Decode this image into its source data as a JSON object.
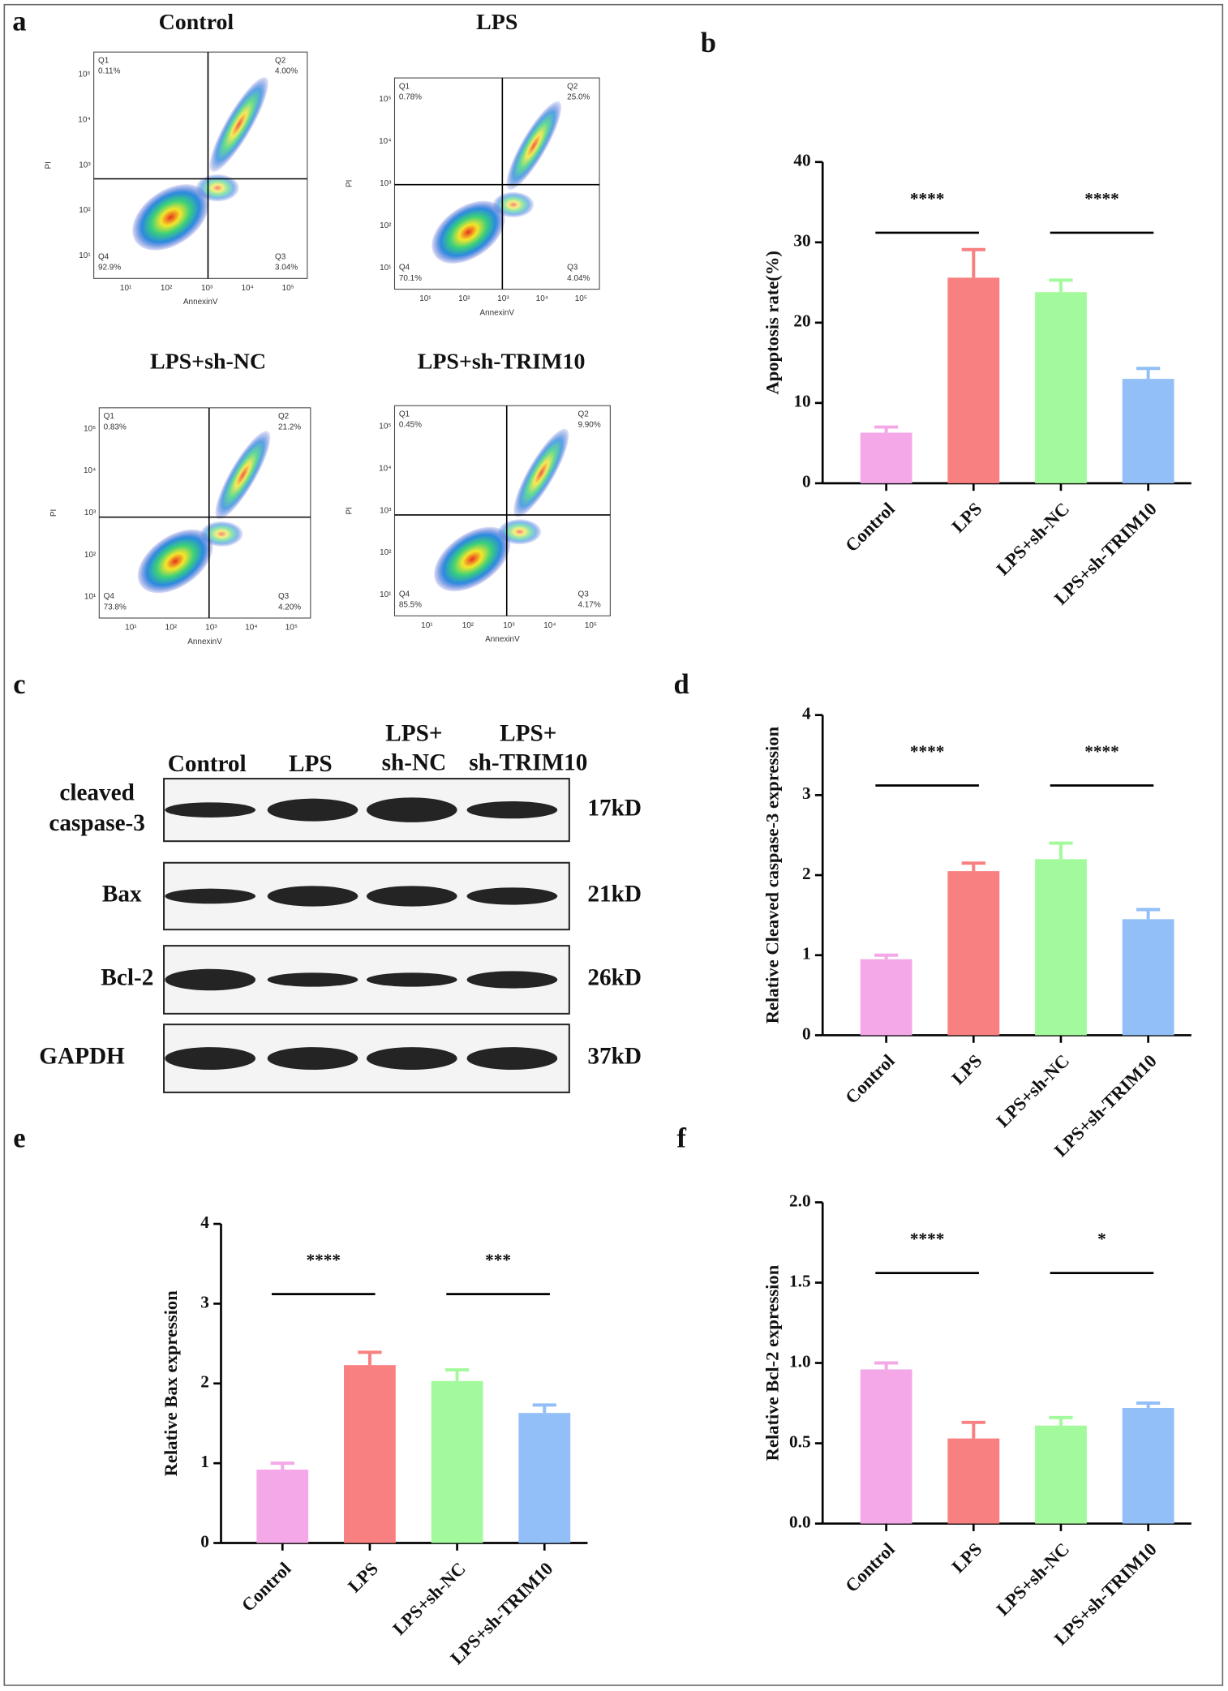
{
  "panel_labels": [
    "a",
    "b",
    "c",
    "d",
    "e",
    "f"
  ],
  "flow_cytometry": {
    "x_label": "AnnexinV",
    "y_label": "PI",
    "ticks": [
      "10¹",
      "10²",
      "10³",
      "10⁴",
      "10⁵"
    ],
    "plots": [
      {
        "title": "Control",
        "quadrants": [
          {
            "name": "Q1",
            "value": "0.11%"
          },
          {
            "name": "Q2",
            "value": "4.00%"
          },
          {
            "name": "Q3",
            "value": "3.04%"
          },
          {
            "name": "Q4",
            "value": "92.9%"
          }
        ]
      },
      {
        "title": "LPS",
        "quadrants": [
          {
            "name": "Q1",
            "value": "0.78%"
          },
          {
            "name": "Q2",
            "value": "25.0%"
          },
          {
            "name": "Q3",
            "value": "4.04%"
          },
          {
            "name": "Q4",
            "value": "70.1%"
          }
        ]
      },
      {
        "title": "LPS+sh-NC",
        "quadrants": [
          {
            "name": "Q1",
            "value": "0.83%"
          },
          {
            "name": "Q2",
            "value": "21.2%"
          },
          {
            "name": "Q3",
            "value": "4.20%"
          },
          {
            "name": "Q4",
            "value": "73.8%"
          }
        ]
      },
      {
        "title": "LPS+sh-TRIM10",
        "quadrants": [
          {
            "name": "Q1",
            "value": "0.45%"
          },
          {
            "name": "Q2",
            "value": "9.90%"
          },
          {
            "name": "Q3",
            "value": "4.17%"
          },
          {
            "name": "Q4",
            "value": "85.5%"
          }
        ]
      }
    ]
  },
  "western_blot": {
    "lanes": [
      [
        "Control"
      ],
      [
        "LPS"
      ],
      [
        "LPS+",
        "sh-NC"
      ],
      [
        "LPS+",
        "sh-TRIM10"
      ]
    ],
    "rows": [
      {
        "label": [
          "cleaved",
          "caspase-3"
        ],
        "size": "17kD"
      },
      {
        "label": [
          "Bax"
        ],
        "size": "21kD"
      },
      {
        "label": [
          "Bcl-2"
        ],
        "size": "26kD"
      },
      {
        "label": [
          "GAPDH"
        ],
        "size": "37kD"
      }
    ]
  },
  "chart_data": [
    {
      "type": "bar",
      "y_label": "Apoptosis rate(%)",
      "categories": [
        "Control",
        "LPS",
        "LPS+sh-NC",
        "LPS+sh-TRIM10"
      ],
      "values": [
        6.3,
        25.6,
        23.8,
        13.0
      ],
      "errors": [
        0.7,
        3.5,
        1.5,
        1.3
      ],
      "colors": [
        "#f4a8e8",
        "#f98080",
        "#a3fa9c",
        "#92bff8"
      ],
      "ylim": [
        0,
        40
      ],
      "yticks": [
        0,
        10,
        20,
        30,
        40
      ],
      "annotations": [
        {
          "text": "****",
          "from": 0,
          "to": 1
        },
        {
          "text": "****",
          "from": 2,
          "to": 3
        }
      ]
    },
    {
      "type": "bar",
      "y_label": "Relative Cleaved caspase-3 expression",
      "categories": [
        "Control",
        "LPS",
        "LPS+sh-NC",
        "LPS+sh-TRIM10"
      ],
      "values": [
        0.95,
        2.05,
        2.2,
        1.45
      ],
      "errors": [
        0.05,
        0.1,
        0.2,
        0.12
      ],
      "colors": [
        "#f4a8e8",
        "#f98080",
        "#a3fa9c",
        "#92bff8"
      ],
      "ylim": [
        0,
        4
      ],
      "yticks": [
        0,
        1,
        2,
        3,
        4
      ],
      "annotations": [
        {
          "text": "****",
          "from": 0,
          "to": 1
        },
        {
          "text": "****",
          "from": 2,
          "to": 3
        }
      ]
    },
    {
      "type": "bar",
      "y_label": "Relative Bax expression",
      "categories": [
        "Control",
        "LPS",
        "LPS+sh-NC",
        "LPS+sh-TRIM10"
      ],
      "values": [
        0.92,
        2.23,
        2.03,
        1.63
      ],
      "errors": [
        0.08,
        0.16,
        0.14,
        0.1
      ],
      "colors": [
        "#f4a8e8",
        "#f98080",
        "#a3fa9c",
        "#92bff8"
      ],
      "ylim": [
        0,
        4
      ],
      "yticks": [
        0,
        1,
        2,
        3,
        4
      ],
      "annotations": [
        {
          "text": "****",
          "from": 0,
          "to": 1
        },
        {
          "text": "***",
          "from": 2,
          "to": 3
        }
      ]
    },
    {
      "type": "bar",
      "y_label": "Relative Bcl-2 expression",
      "categories": [
        "Control",
        "LPS",
        "LPS+sh-NC",
        "LPS+sh-TRIM10"
      ],
      "values": [
        0.96,
        0.53,
        0.61,
        0.72
      ],
      "errors": [
        0.04,
        0.1,
        0.05,
        0.03
      ],
      "colors": [
        "#f4a8e8",
        "#f98080",
        "#a3fa9c",
        "#92bff8"
      ],
      "ylim": [
        0,
        2
      ],
      "yticks": [
        {
          "value": 0,
          "label": "0.0"
        },
        {
          "value": 0.5,
          "label": "0.5"
        },
        {
          "value": 1,
          "label": "1.0"
        },
        {
          "value": 1.5,
          "label": "1.5"
        },
        {
          "value": 2,
          "label": "2.0"
        }
      ],
      "annotations": [
        {
          "text": "****",
          "from": 0,
          "to": 1
        },
        {
          "text": "*",
          "from": 2,
          "to": 3
        }
      ]
    }
  ]
}
